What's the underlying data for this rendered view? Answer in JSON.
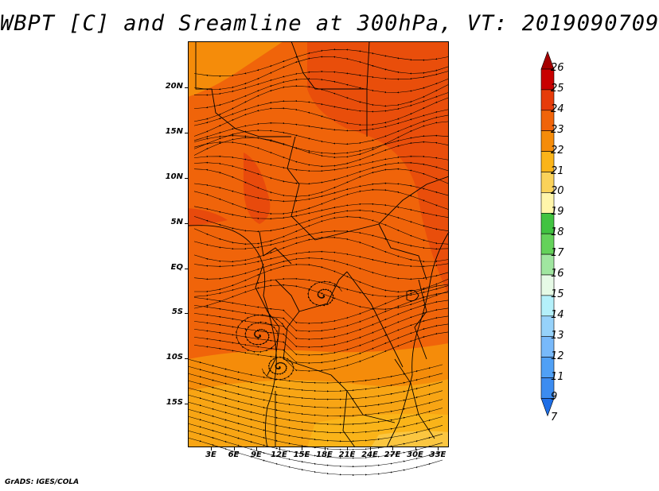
{
  "title": "WBPT [C] and Sreamline at 300hPa, VT: 2019090709",
  "footer": "GrADS: IGES/COLA",
  "map": {
    "lat_labels": [
      "20N",
      "15N",
      "10N",
      "5N",
      "EQ",
      "5S",
      "10S",
      "15S"
    ],
    "lon_labels": [
      "3E",
      "6E",
      "9E",
      "12E",
      "15E",
      "18E",
      "21E",
      "24E",
      "27E",
      "30E",
      "33E"
    ],
    "lon_range": [
      0,
      34
    ],
    "lat_range": [
      -20,
      24.5
    ]
  },
  "colorbar": {
    "labels": [
      "26",
      "25",
      "24",
      "23",
      "22",
      "21",
      "20",
      "19",
      "18",
      "17",
      "16",
      "15",
      "14",
      "13",
      "12",
      "11",
      "9",
      "7"
    ],
    "colors": [
      "#a50000",
      "#c80000",
      "#e63c0a",
      "#f0640a",
      "#f58c0a",
      "#fab419",
      "#fad25a",
      "#fff5aa",
      "#41c341",
      "#64d25a",
      "#a0e6a0",
      "#e6fae6",
      "#b4f0fa",
      "#96d2fa",
      "#78b9fa",
      "#50a0f5",
      "#3c8cf0",
      "#1e6ee6"
    ]
  }
}
